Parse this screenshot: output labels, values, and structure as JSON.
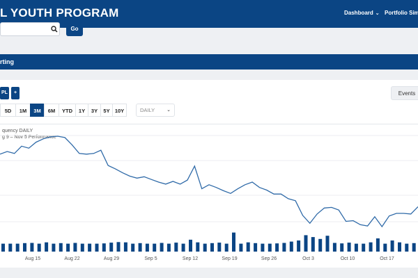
{
  "header": {
    "brand": "L YOUTH PROGRAM",
    "nav": [
      {
        "label": "Dashboard"
      },
      {
        "label": "Portfolio Sim"
      }
    ]
  },
  "search": {
    "placeholder": "",
    "go_label": "Go"
  },
  "section": {
    "title": "rting"
  },
  "toolbar": {
    "symbol_label": "PL",
    "add_label": "+",
    "events_label": "Events",
    "periods": [
      {
        "label": "5D",
        "active": false
      },
      {
        "label": "1M",
        "active": false
      },
      {
        "label": "3M",
        "active": true
      },
      {
        "label": "6M",
        "active": false
      },
      {
        "label": "YTD",
        "active": false
      },
      {
        "label": "1Y",
        "active": false
      },
      {
        "label": "3Y",
        "active": false
      },
      {
        "label": "5Y",
        "active": false
      },
      {
        "label": "10Y",
        "active": false
      }
    ],
    "frequency": "DAILY"
  },
  "chart_legend": {
    "line1": "quency DAILY",
    "line2": "g 9 – Nov 5 Performance"
  },
  "colors": {
    "brand": "#0b4584",
    "line": "#2f6aa8",
    "bar": "#0b4584"
  },
  "chart_data": {
    "type": "line",
    "x_tick_labels": [
      "Aug 15",
      "Aug 22",
      "Aug 29",
      "Sep 5",
      "Sep 12",
      "Sep 19",
      "Sep 26",
      "Oct 3",
      "Oct 10",
      "Oct 17"
    ],
    "price_series": [
      0.72,
      0.76,
      0.73,
      0.84,
      0.81,
      0.9,
      0.95,
      0.98,
      0.99,
      0.97,
      0.86,
      0.73,
      0.72,
      0.73,
      0.78,
      0.55,
      0.5,
      0.44,
      0.39,
      0.36,
      0.38,
      0.34,
      0.3,
      0.27,
      0.31,
      0.27,
      0.33,
      0.54,
      0.2,
      0.26,
      0.22,
      0.17,
      0.13,
      0.2,
      0.26,
      0.3,
      0.22,
      0.18,
      0.12,
      0.12,
      0.05,
      0.02,
      -0.2,
      -0.32,
      -0.18,
      -0.09,
      -0.08,
      -0.12,
      -0.29,
      -0.28,
      -0.34,
      -0.36,
      -0.22,
      -0.37,
      -0.21,
      -0.17,
      -0.17,
      -0.18,
      -0.07
    ],
    "volume_series": [
      0.3,
      0.3,
      0.3,
      0.32,
      0.33,
      0.3,
      0.35,
      0.3,
      0.32,
      0.3,
      0.33,
      0.3,
      0.3,
      0.3,
      0.31,
      0.34,
      0.36,
      0.35,
      0.3,
      0.32,
      0.3,
      0.3,
      0.33,
      0.3,
      0.34,
      0.3,
      0.45,
      0.35,
      0.3,
      0.32,
      0.34,
      0.3,
      0.72,
      0.3,
      0.35,
      0.32,
      0.3,
      0.3,
      0.31,
      0.33,
      0.38,
      0.42,
      0.62,
      0.55,
      0.48,
      0.6,
      0.33,
      0.31,
      0.34,
      0.3,
      0.3,
      0.35,
      0.5,
      0.3,
      0.42,
      0.35,
      0.3,
      0.32,
      0.3
    ]
  }
}
